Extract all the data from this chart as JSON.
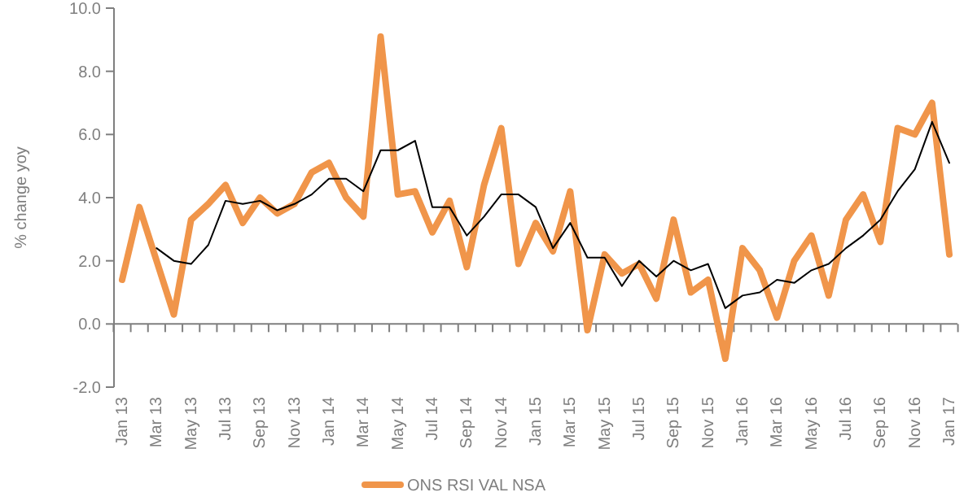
{
  "chart_data": {
    "type": "line",
    "ylabel": "% change yoy",
    "categories": [
      "Jan 13",
      null,
      "Mar 13",
      null,
      "May 13",
      null,
      "Jul 13",
      null,
      "Sep 13",
      null,
      "Nov 13",
      null,
      "Jan 14",
      null,
      "Mar 14",
      null,
      "May 14",
      null,
      "Jul 14",
      null,
      "Sep 14",
      null,
      "Nov 14",
      null,
      "Jan 15",
      null,
      "Mar 15",
      null,
      "May 15",
      null,
      "Jul 15",
      null,
      "Sep 15",
      null,
      "Nov 15",
      null,
      "Jan 16",
      null,
      "Mar 16",
      null,
      "May 16",
      null,
      "Jul 16",
      null,
      "Sep 16",
      null,
      "Nov 16",
      null,
      "Jan 17"
    ],
    "series": [
      {
        "name": "ONS RSI VAL NSA",
        "color": "#f0954a",
        "values": [
          1.4,
          3.7,
          2.0,
          0.3,
          3.3,
          3.8,
          4.4,
          3.2,
          4.0,
          3.5,
          3.8,
          4.8,
          5.1,
          4.0,
          3.4,
          9.1,
          4.1,
          4.2,
          2.9,
          3.9,
          1.8,
          4.4,
          6.2,
          1.9,
          3.2,
          2.3,
          4.2,
          -0.2,
          2.2,
          1.6,
          1.9,
          0.8,
          3.3,
          1.0,
          1.4,
          -1.1,
          2.4,
          1.7,
          0.2,
          2.0,
          2.8,
          0.9,
          3.3,
          4.1,
          2.6,
          6.2,
          6.0,
          7.0,
          2.2
        ]
      },
      {
        "color": "#000000",
        "values": [
          null,
          null,
          2.4,
          2.0,
          1.9,
          2.5,
          3.9,
          3.8,
          3.9,
          3.6,
          3.8,
          4.1,
          4.6,
          4.6,
          4.2,
          5.5,
          5.5,
          5.8,
          3.7,
          3.7,
          2.8,
          3.4,
          4.1,
          4.1,
          3.7,
          2.4,
          3.2,
          2.1,
          2.1,
          1.2,
          2.0,
          1.5,
          2.0,
          1.7,
          1.9,
          0.5,
          0.9,
          1.0,
          1.4,
          1.3,
          1.7,
          1.9,
          2.4,
          2.8,
          3.3,
          4.2,
          4.9,
          6.4,
          5.1
        ]
      }
    ],
    "ylim": [
      -2,
      10
    ],
    "yticks": [
      {
        "value": -2,
        "label": "-2.0"
      },
      {
        "value": 0,
        "label": "0.0"
      },
      {
        "value": 2,
        "label": "2.0"
      },
      {
        "value": 4,
        "label": "4.0"
      },
      {
        "value": 6,
        "label": "6.0"
      },
      {
        "value": 8,
        "label": "8.0"
      },
      {
        "value": 10,
        "label": "10.0"
      }
    ],
    "legend": "bottom",
    "marker": "none",
    "line_style": "solid"
  }
}
